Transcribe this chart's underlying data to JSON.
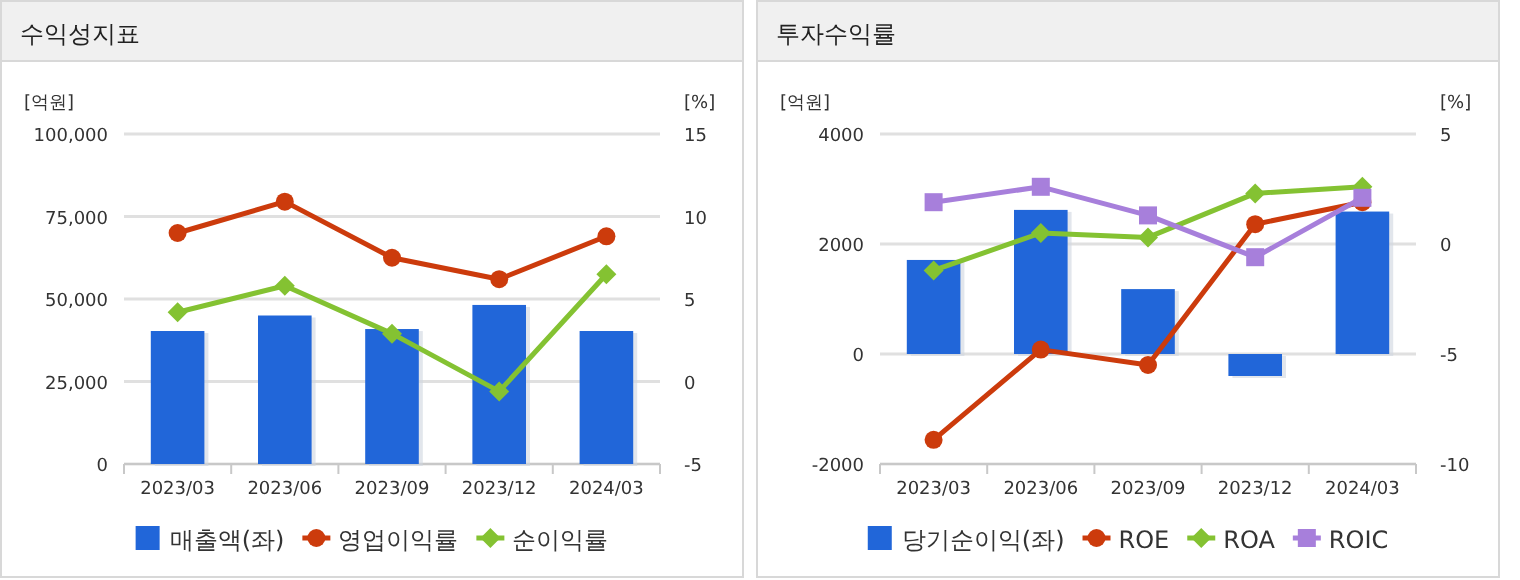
{
  "chart_data": [
    {
      "type": "bar",
      "title": "수익성지표",
      "ylabel": "[억원]",
      "y2label": "[%]",
      "categories": [
        "2023/03",
        "2023/06",
        "2023/09",
        "2023/12",
        "2024/03"
      ],
      "series": [
        {
          "name": "매출액(좌)",
          "color": "#2166d9",
          "values": [
            40300,
            45000,
            40900,
            48200,
            40300
          ]
        },
        {
          "name": "영업이익률",
          "type": "line",
          "axis": "y2",
          "marker": "circle",
          "color": "#cc3b0c",
          "values": [
            9.0,
            10.9,
            7.5,
            6.2,
            8.8
          ]
        },
        {
          "name": "순이익률",
          "type": "line",
          "axis": "y2",
          "marker": "diamond",
          "color": "#84c232",
          "values": [
            4.2,
            5.8,
            2.9,
            -0.6,
            6.5
          ]
        }
      ],
      "ylim": [
        0,
        100000
      ],
      "yticks": [
        {
          "value": 0,
          "label": "0"
        },
        {
          "value": 25000,
          "label": "25,000"
        },
        {
          "value": 50000,
          "label": "50,000"
        },
        {
          "value": 75000,
          "label": "75,000"
        },
        {
          "value": 100000,
          "label": "100,000"
        }
      ],
      "y2lim": [
        -5,
        15
      ],
      "y2ticks": [
        -5,
        0,
        5,
        10,
        15
      ],
      "grid": "y",
      "legend": "bottom"
    },
    {
      "type": "bar",
      "title": "투자수익률",
      "ylabel": "[억원]",
      "y2label": "[%]",
      "categories": [
        "2023/03",
        "2023/06",
        "2023/09",
        "2023/12",
        "2024/03"
      ],
      "series": [
        {
          "name": "당기순이익(좌)",
          "color": "#2166d9",
          "values": [
            1710,
            2620,
            1180,
            -400,
            2590
          ]
        },
        {
          "name": "ROE",
          "type": "line",
          "axis": "y2",
          "marker": "circle",
          "color": "#cc3b0c",
          "values": [
            -8.9,
            -4.8,
            -5.5,
            0.9,
            1.9
          ]
        },
        {
          "name": "ROA",
          "type": "line",
          "axis": "y2",
          "marker": "diamond",
          "color": "#84c232",
          "values": [
            -1.2,
            0.5,
            0.3,
            2.3,
            2.6
          ]
        },
        {
          "name": "ROIC",
          "type": "line",
          "axis": "y2",
          "marker": "square",
          "color": "#a77fdb",
          "values": [
            1.9,
            2.6,
            1.3,
            -0.6,
            2.1
          ]
        }
      ],
      "ylim": [
        -2000,
        4000
      ],
      "yticks": [
        -2000,
        0,
        2000,
        4000
      ],
      "y2lim": [
        -10,
        5
      ],
      "y2ticks": [
        -10,
        -5,
        0,
        5
      ],
      "grid": "y",
      "legend": "bottom"
    }
  ]
}
